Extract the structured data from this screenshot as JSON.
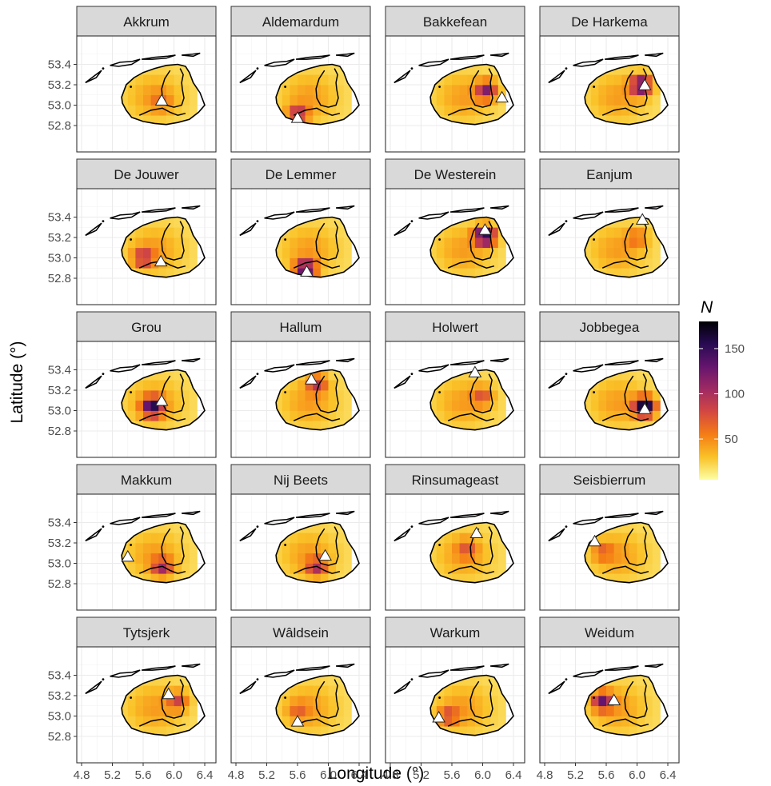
{
  "chart_data": {
    "type": "heatmap",
    "xlabel": "Longitude (°)",
    "ylabel": "Latitude (°)",
    "xlim": [
      4.8,
      6.45
    ],
    "ylim": [
      52.77,
      53.52
    ],
    "xticks": [
      4.8,
      5.2,
      5.6,
      6.0,
      6.4
    ],
    "xtick_labels": [
      "4.8",
      "5.2",
      "5.6",
      "6.0",
      "6.4"
    ],
    "yticks": [
      52.8,
      53.0,
      53.2,
      53.4
    ],
    "ytick_labels": [
      "52.8",
      "53.0",
      "53.2",
      "53.4"
    ],
    "grid": true,
    "colorbar": {
      "title": "N",
      "ticks": [
        50,
        100,
        150
      ],
      "tick_labels": [
        "50",
        "100",
        "150"
      ],
      "range": [
        5,
        180
      ],
      "colors": [
        "#fcffa4",
        "#fac228",
        "#f57d15",
        "#d44842",
        "#9f2a63",
        "#65156e",
        "#280b53",
        "#000004"
      ]
    },
    "grid_cells": {
      "lons": [
        5.35,
        5.45,
        5.55,
        5.65,
        5.75,
        5.85,
        5.95,
        6.05,
        6.15,
        6.25
      ],
      "lats": [
        52.85,
        52.95,
        53.05,
        53.15,
        53.25,
        53.35
      ]
    },
    "panels": [
      {
        "name": "Akkrum",
        "marker": [
          5.84,
          53.04
        ],
        "hotspot": [
          5.84,
          53.04
        ],
        "peak": 45
      },
      {
        "name": "Aldemardum",
        "marker": [
          5.6,
          52.87
        ],
        "hotspot": [
          5.6,
          52.9
        ],
        "peak": 100
      },
      {
        "name": "Bakkefean",
        "marker": [
          6.25,
          53.07
        ],
        "hotspot": [
          6.05,
          53.15
        ],
        "peak": 110
      },
      {
        "name": "De Harkema",
        "marker": [
          6.1,
          53.19
        ],
        "hotspot": [
          6.05,
          53.2
        ],
        "peak": 140
      },
      {
        "name": "De Jouwer",
        "marker": [
          5.83,
          52.96
        ],
        "hotspot": [
          5.6,
          53.0
        ],
        "peak": 85
      },
      {
        "name": "De Lemmer",
        "marker": [
          5.72,
          52.86
        ],
        "hotspot": [
          5.7,
          52.88
        ],
        "peak": 150
      },
      {
        "name": "De Westerein",
        "marker": [
          6.03,
          53.27
        ],
        "hotspot": [
          6.03,
          53.22
        ],
        "peak": 165
      },
      {
        "name": "Eanjum",
        "marker": [
          6.07,
          53.37
        ],
        "hotspot": [
          6.0,
          53.2
        ],
        "peak": 55
      },
      {
        "name": "Grou",
        "marker": [
          5.84,
          53.09
        ],
        "hotspot": [
          5.72,
          53.04
        ],
        "peak": 140
      },
      {
        "name": "Hallum",
        "marker": [
          5.78,
          53.3
        ],
        "hotspot": [
          5.85,
          53.27
        ],
        "peak": 85
      },
      {
        "name": "Holwert",
        "marker": [
          5.9,
          53.37
        ],
        "hotspot": [
          6.0,
          53.15
        ],
        "peak": 65
      },
      {
        "name": "Jobbegea",
        "marker": [
          6.1,
          53.01
        ],
        "hotspot": [
          6.1,
          53.04
        ],
        "peak": 175
      },
      {
        "name": "Makkum",
        "marker": [
          5.4,
          53.06
        ],
        "hotspot": [
          5.85,
          52.96
        ],
        "peak": 90
      },
      {
        "name": "Nij Beets",
        "marker": [
          5.96,
          53.07
        ],
        "hotspot": [
          5.85,
          52.96
        ],
        "peak": 85
      },
      {
        "name": "Rinsumageast",
        "marker": [
          5.92,
          53.29
        ],
        "hotspot": [
          5.8,
          53.15
        ],
        "peak": 55
      },
      {
        "name": "Seisbierrum",
        "marker": [
          5.45,
          53.21
        ],
        "hotspot": [
          5.55,
          53.12
        ],
        "peak": 55
      },
      {
        "name": "Tytsjerk",
        "marker": [
          5.93,
          53.21
        ],
        "hotspot": [
          6.05,
          53.15
        ],
        "peak": 75
      },
      {
        "name": "Wâldsein",
        "marker": [
          5.6,
          52.94
        ],
        "hotspot": [
          5.6,
          53.05
        ],
        "peak": 50
      },
      {
        "name": "Warkum",
        "marker": [
          5.43,
          52.98
        ],
        "hotspot": [
          5.55,
          53.0
        ],
        "peak": 70
      },
      {
        "name": "Weidum",
        "marker": [
          5.7,
          53.15
        ],
        "hotspot": [
          5.55,
          53.15
        ],
        "peak": 115
      }
    ]
  }
}
